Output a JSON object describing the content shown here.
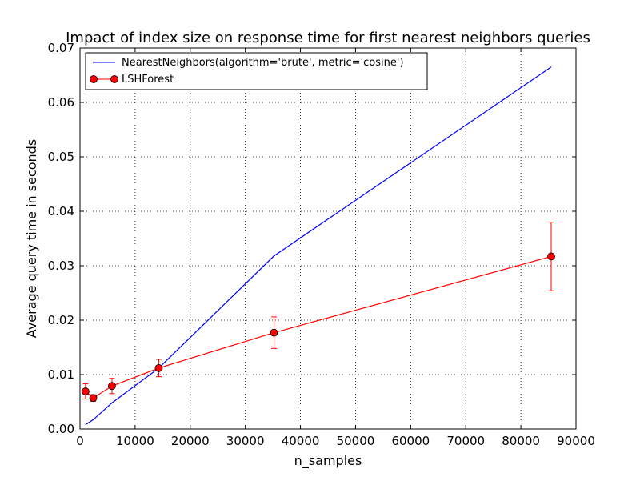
{
  "chart_data": {
    "type": "line",
    "title": "Impact of index size on response time for first nearest neighbors queries",
    "xlabel": "n_samples",
    "ylabel": "Average query time in seconds",
    "xlim": [
      0,
      90000
    ],
    "ylim": [
      0,
      0.07
    ],
    "grid": true,
    "legend_position": "top-left",
    "x_ticks": [
      0,
      10000,
      20000,
      30000,
      40000,
      50000,
      60000,
      70000,
      80000,
      90000
    ],
    "x_tick_labels": [
      "0",
      "10000",
      "20000",
      "30000",
      "40000",
      "50000",
      "60000",
      "70000",
      "80000",
      "90000"
    ],
    "y_ticks": [
      0,
      0.01,
      0.02,
      0.03,
      0.04,
      0.05,
      0.06,
      0.07
    ],
    "y_tick_labels": [
      "0.00",
      "0.01",
      "0.02",
      "0.03",
      "0.04",
      "0.05",
      "0.06",
      "0.07"
    ],
    "series": [
      {
        "name": "NearestNeighbors(algorithm='brute', metric='cosine')",
        "color": "#0000ff",
        "marker": "none",
        "x": [
          1000,
          2400,
          5800,
          14300,
          35200,
          85500
        ],
        "y": [
          0.0008,
          0.0017,
          0.0048,
          0.0112,
          0.0318,
          0.0665
        ]
      },
      {
        "name": "LSHForest",
        "color": "#ff0000",
        "marker": "circle",
        "x": [
          1000,
          2400,
          5800,
          14300,
          35200,
          85500
        ],
        "y": [
          0.0069,
          0.0057,
          0.0079,
          0.0112,
          0.0177,
          0.0317
        ],
        "yerr": [
          0.0014,
          0.0006,
          0.0014,
          0.0016,
          0.0029,
          0.0063
        ]
      }
    ]
  }
}
